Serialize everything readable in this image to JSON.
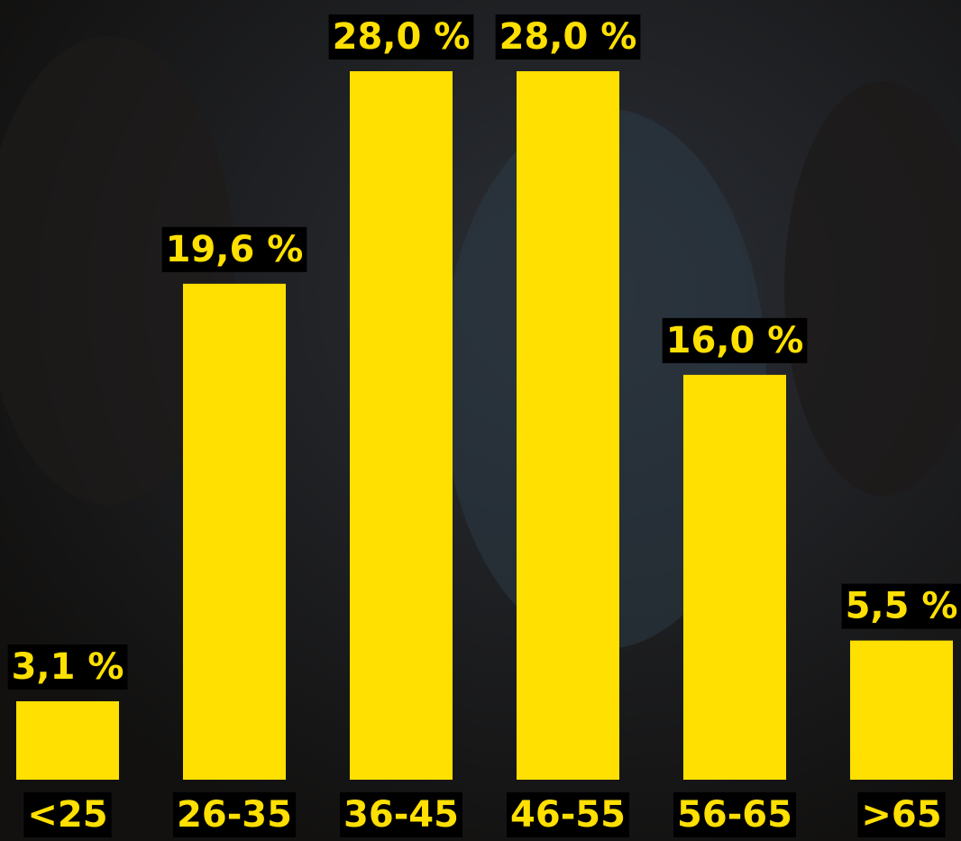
{
  "chart_data": {
    "type": "bar",
    "categories": [
      "<25",
      "26-35",
      "36-45",
      "46-55",
      "56-65",
      ">65"
    ],
    "values": [
      3.1,
      19.6,
      28.0,
      28.0,
      16.0,
      5.5
    ],
    "value_labels": [
      "3,1 %",
      "19,6 %",
      "28,0 %",
      "28,0 %",
      "16,0 %",
      "5,5 %"
    ],
    "color": "#ffe000"
  }
}
